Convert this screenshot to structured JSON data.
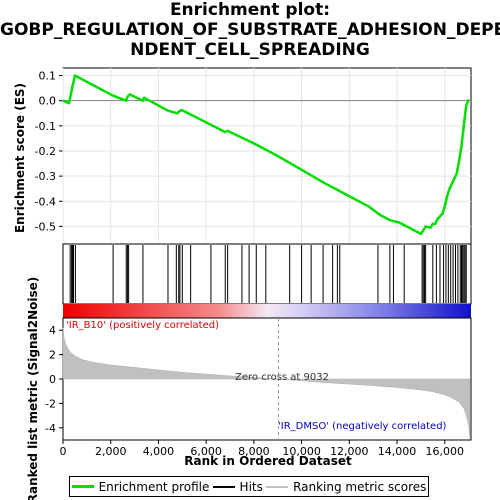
{
  "title_lines": [
    "Enrichment plot:",
    "GOBP_REGULATION_OF_SUBSTRATE_ADHESION_DEPE",
    "NDENT_CELL_SPREADING"
  ],
  "legend": [
    {
      "label": "Enrichment profile",
      "color": "#00dd00"
    },
    {
      "label": "Hits",
      "color": "#000000"
    },
    {
      "label": "Ranking metric scores",
      "color": "#c0c0c0"
    }
  ],
  "chart_data": [
    {
      "type": "line",
      "ylabel": "Enrichment score (ES)",
      "ylim": [
        -0.57,
        0.13
      ],
      "xlim": [
        0,
        17100
      ],
      "yticks": [
        {
          "value": 0.1,
          "label": "0.1"
        },
        {
          "value": 0.0,
          "label": "0.0"
        },
        {
          "value": -0.1,
          "label": "-0.1"
        },
        {
          "value": -0.2,
          "label": "-0.2"
        },
        {
          "value": -0.3,
          "label": "-0.3"
        },
        {
          "value": -0.4,
          "label": "-0.4"
        },
        {
          "value": -0.5,
          "label": "-0.5"
        }
      ],
      "grid": true,
      "series": [
        {
          "color": "#00dd00",
          "x": [
            0,
            250,
            320,
            380,
            430,
            500,
            2100,
            2650,
            2700,
            2800,
            3350,
            3400,
            4400,
            4800,
            4900,
            5000,
            6800,
            6900,
            8000,
            9000,
            10000,
            11000,
            11500,
            11700,
            12800,
            13300,
            13700,
            13900,
            14100,
            14400,
            15000,
            15100,
            15200,
            15400,
            15500,
            15600,
            15700,
            15800,
            15900,
            16000,
            16100,
            16200,
            16300,
            16400,
            16500,
            16600,
            16700,
            16800,
            16900,
            17000
          ],
          "y": [
            0.0,
            -0.01,
            0.02,
            0.05,
            0.07,
            0.1,
            0.02,
            0.0,
            0.015,
            0.025,
            0.0,
            0.012,
            -0.04,
            -0.05,
            -0.04,
            -0.038,
            -0.125,
            -0.12,
            -0.17,
            -0.22,
            -0.275,
            -0.33,
            -0.355,
            -0.365,
            -0.42,
            -0.455,
            -0.475,
            -0.48,
            -0.485,
            -0.5,
            -0.53,
            -0.515,
            -0.5,
            -0.505,
            -0.49,
            -0.49,
            -0.47,
            -0.46,
            -0.45,
            -0.42,
            -0.38,
            -0.35,
            -0.33,
            -0.31,
            -0.29,
            -0.24,
            -0.18,
            -0.1,
            -0.02,
            0.005
          ]
        }
      ]
    },
    {
      "type": "scatter",
      "name": "hits",
      "x": [
        300,
        360,
        400,
        440,
        520,
        2100,
        2650,
        2700,
        2750,
        3350,
        4400,
        4750,
        4850,
        4900,
        5000,
        5350,
        6200,
        6800,
        6900,
        7500,
        7800,
        8100,
        8500,
        9500,
        10000,
        10400,
        10900,
        11300,
        11500,
        11600,
        13200,
        13700,
        13850,
        14300,
        15050,
        15100,
        15150,
        15200,
        15500,
        15650,
        15800,
        15950,
        16050,
        16150,
        16250,
        16350,
        16450,
        16550,
        16650,
        16700,
        16750,
        16800,
        16850,
        16900
      ]
    },
    {
      "type": "area",
      "ylabel": "Ranked list metric (Signal2Noise)",
      "xlabel": "Rank in Ordered Dataset",
      "xlim": [
        0,
        17100
      ],
      "ylim": [
        -5,
        5
      ],
      "yticks": [
        {
          "value": 4,
          "label": "4"
        },
        {
          "value": 2,
          "label": "2"
        },
        {
          "value": 0,
          "label": "0"
        },
        {
          "value": -2,
          "label": "-2"
        },
        {
          "value": -4,
          "label": "-4"
        }
      ],
      "xticks": [
        {
          "value": 0,
          "label": "0"
        },
        {
          "value": 2000,
          "label": "2,000"
        },
        {
          "value": 4000,
          "label": "4,000"
        },
        {
          "value": 6000,
          "label": "6,000"
        },
        {
          "value": 8000,
          "label": "8,000"
        },
        {
          "value": 10000,
          "label": "10,000"
        },
        {
          "value": 12000,
          "label": "12,000"
        },
        {
          "value": 14000,
          "label": "14,000"
        },
        {
          "value": 16000,
          "label": "16,000"
        }
      ],
      "x": [
        0,
        50,
        150,
        300,
        500,
        800,
        1200,
        2000,
        3000,
        4000,
        5000,
        6000,
        7000,
        8000,
        9032,
        10000,
        11000,
        12000,
        13000,
        14000,
        15000,
        15500,
        16000,
        16300,
        16600,
        16800,
        16900,
        17000,
        17050
      ],
      "values": [
        4.2,
        3.3,
        2.7,
        2.2,
        1.9,
        1.6,
        1.4,
        1.15,
        0.95,
        0.75,
        0.55,
        0.4,
        0.25,
        0.12,
        0.0,
        -0.15,
        -0.3,
        -0.42,
        -0.55,
        -0.7,
        -0.9,
        -1.05,
        -1.3,
        -1.55,
        -1.9,
        -2.4,
        -3.0,
        -3.8,
        -4.8
      ],
      "annotations": [
        {
          "text": "'IR_B10' (positively correlated)",
          "color": "#dd0000"
        },
        {
          "text": "Zero cross at 9032",
          "color": "#333333"
        },
        {
          "text": "'IR_DMSO' (negatively correlated)",
          "color": "#0000cc"
        }
      ],
      "zero_cross": 9032
    }
  ]
}
